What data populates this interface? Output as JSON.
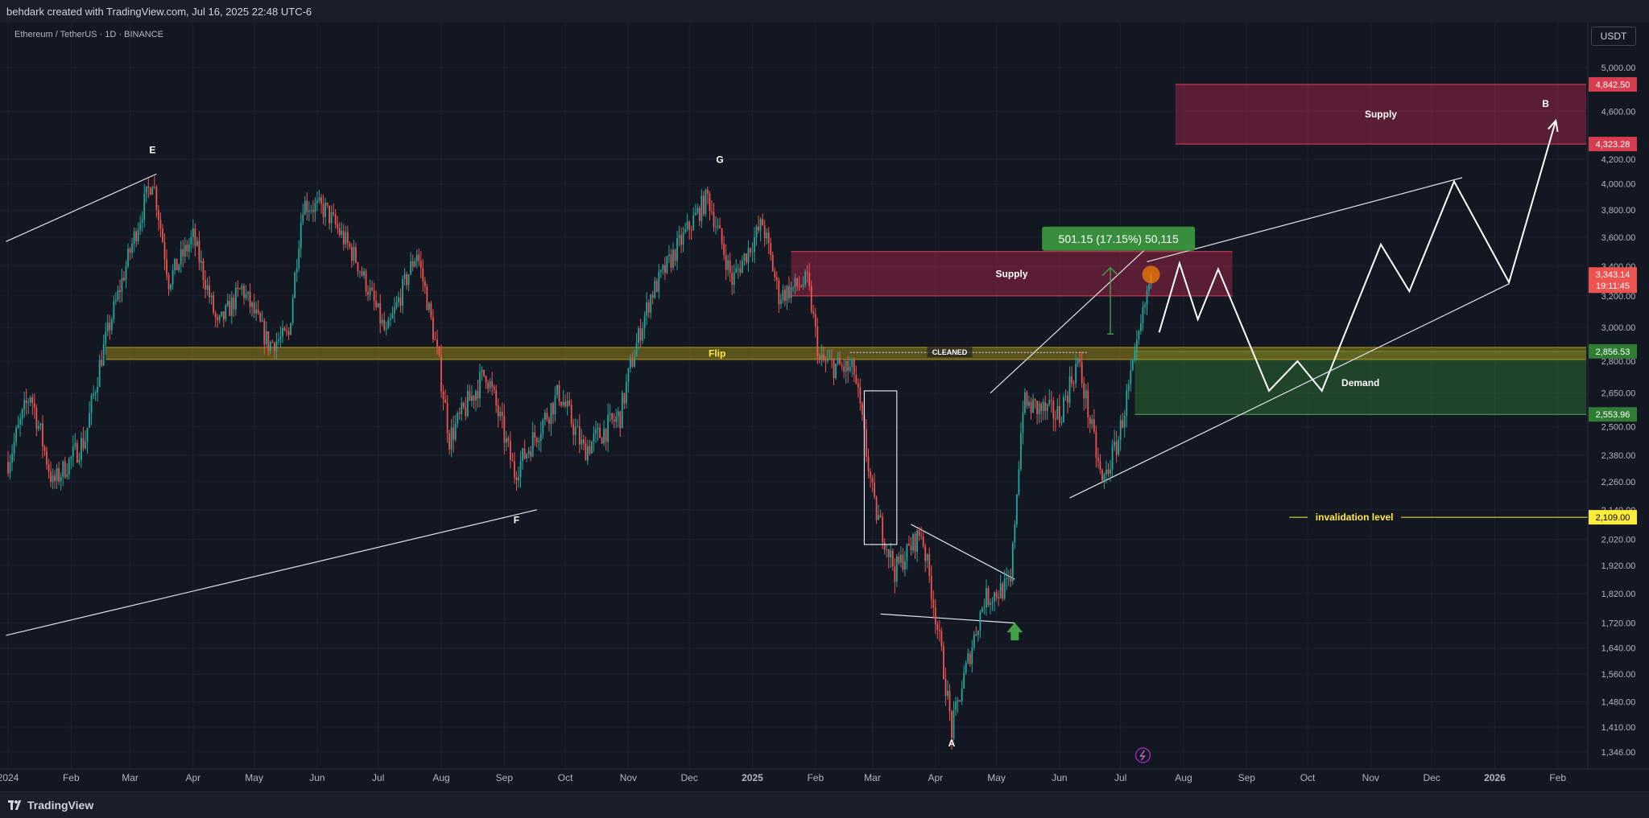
{
  "topbar": {
    "credit": "behdark created with TradingView.com, Jul 16, 2025 22:48 UTC-6"
  },
  "symbol_line": "Ethereum / TetherUS · 1D · BINANCE",
  "currency_button": "USDT",
  "footer": {
    "brand": "TradingView"
  },
  "colors": {
    "background": "#131722",
    "up_candle": "#26a69a",
    "down_candle": "#ef5350",
    "supply_zone": "#b2294b",
    "demand_zone": "#2e7d32",
    "flip_zone": "#8a7a1a",
    "invalidation": "#ffeb3b",
    "measure": "#43a047"
  },
  "chart_data": {
    "type": "candlestick",
    "instrument": "Ethereum / TetherUS",
    "timeframe": "1D",
    "exchange": "BINANCE",
    "y_axis_ticks": [
      "5,000.00",
      "4,600.00",
      "4,200.00",
      "4,000.00",
      "3,800.00",
      "3,600.00",
      "3,400.00",
      "3,200.00",
      "3,000.00",
      "2,800.00",
      "2,650.00",
      "2,500.00",
      "2,380.00",
      "2,260.00",
      "2,140.00",
      "2,020.00",
      "1,920.00",
      "1,820.00",
      "1,720.00",
      "1,640.00",
      "1,560.00",
      "1,480.00",
      "1,410.00",
      "1,346.00"
    ],
    "x_axis_ticks": [
      "2024",
      "Feb",
      "Mar",
      "Apr",
      "May",
      "Jun",
      "Jul",
      "Aug",
      "Sep",
      "Oct",
      "Nov",
      "Dec",
      "2025",
      "Feb",
      "Mar",
      "Apr",
      "May",
      "Jun",
      "Jul",
      "Aug",
      "Sep",
      "Oct",
      "Nov",
      "Dec",
      "2026",
      "Feb"
    ],
    "price_path": [
      {
        "date": "2024-01-01",
        "price": 2350
      },
      {
        "date": "2024-01-12",
        "price": 2650
      },
      {
        "date": "2024-01-23",
        "price": 2250
      },
      {
        "date": "2024-02-08",
        "price": 2450
      },
      {
        "date": "2024-02-26",
        "price": 3300
      },
      {
        "date": "2024-03-12",
        "price": 4050
      },
      {
        "date": "2024-03-20",
        "price": 3300
      },
      {
        "date": "2024-04-01",
        "price": 3600
      },
      {
        "date": "2024-04-13",
        "price": 3000
      },
      {
        "date": "2024-04-25",
        "price": 3250
      },
      {
        "date": "2024-05-08",
        "price": 2900
      },
      {
        "date": "2024-05-18",
        "price": 2950
      },
      {
        "date": "2024-05-25",
        "price": 3850
      },
      {
        "date": "2024-06-05",
        "price": 3800
      },
      {
        "date": "2024-06-20",
        "price": 3450
      },
      {
        "date": "2024-07-05",
        "price": 2950
      },
      {
        "date": "2024-07-20",
        "price": 3500
      },
      {
        "date": "2024-08-05",
        "price": 2450
      },
      {
        "date": "2024-08-23",
        "price": 2750
      },
      {
        "date": "2024-09-06",
        "price": 2300
      },
      {
        "date": "2024-09-28",
        "price": 2650
      },
      {
        "date": "2024-10-10",
        "price": 2400
      },
      {
        "date": "2024-10-28",
        "price": 2550
      },
      {
        "date": "2024-11-12",
        "price": 3200
      },
      {
        "date": "2024-11-28",
        "price": 3600
      },
      {
        "date": "2024-12-10",
        "price": 3900
      },
      {
        "date": "2024-12-22",
        "price": 3300
      },
      {
        "date": "2025-01-06",
        "price": 3700
      },
      {
        "date": "2025-01-14",
        "price": 3200
      },
      {
        "date": "2025-01-28",
        "price": 3300
      },
      {
        "date": "2025-02-03",
        "price": 2800
      },
      {
        "date": "2025-02-20",
        "price": 2750
      },
      {
        "date": "2025-03-02",
        "price": 2150
      },
      {
        "date": "2025-03-12",
        "price": 1900
      },
      {
        "date": "2025-03-25",
        "price": 2050
      },
      {
        "date": "2025-04-09",
        "price": 1400
      },
      {
        "date": "2025-04-25",
        "price": 1800
      },
      {
        "date": "2025-05-08",
        "price": 1850
      },
      {
        "date": "2025-05-14",
        "price": 2600
      },
      {
        "date": "2025-06-01",
        "price": 2550
      },
      {
        "date": "2025-06-10",
        "price": 2800
      },
      {
        "date": "2025-06-22",
        "price": 2250
      },
      {
        "date": "2025-06-30",
        "price": 2450
      },
      {
        "date": "2025-07-08",
        "price": 2800
      },
      {
        "date": "2025-07-16",
        "price": 3343.14
      }
    ],
    "price_range": [
      1346,
      5100
    ],
    "last_price": {
      "value": "3,343.14",
      "countdown": "19:11:45"
    },
    "zones": [
      {
        "name": "Supply",
        "type": "supply",
        "from": "2025-01-20",
        "to": "2025-08-25",
        "top": 3500,
        "bottom": 3200
      },
      {
        "name": "Supply",
        "type": "supply",
        "from": "2025-07-28",
        "to": "2026-02-15",
        "top": 4842.5,
        "bottom": 4323.28
      },
      {
        "name": "Demand",
        "type": "demand",
        "from": "2025-07-08",
        "to": "2026-02-15",
        "top": 2856.53,
        "bottom": 2553.96
      },
      {
        "name": "Flip",
        "type": "flip",
        "from": "2024-02-18",
        "to": "2026-02-15",
        "top": 2880,
        "bottom": 2810
      }
    ],
    "price_labels": [
      {
        "value": "4,842.50",
        "price": 4842.5,
        "kind": "supply"
      },
      {
        "value": "4,323.28",
        "price": 4323.28,
        "kind": "supply"
      },
      {
        "value": "2,856.53",
        "price": 2856.53,
        "kind": "demand"
      },
      {
        "value": "2,553.96",
        "price": 2553.96,
        "kind": "demand"
      },
      {
        "value": "2,109.00",
        "price": 2109,
        "kind": "invalidation"
      }
    ],
    "wave_labels": [
      {
        "label": "E",
        "date": "2024-03-12",
        "price": 4250
      },
      {
        "label": "F",
        "date": "2024-09-07",
        "price": 2085
      },
      {
        "label": "G",
        "date": "2024-12-16",
        "price": 4170
      },
      {
        "label": "A",
        "date": "2025-04-09",
        "price": 1360
      },
      {
        "label": "B",
        "date": "2026-01-26",
        "price": 4640
      }
    ],
    "annotations": {
      "cleaned": "CLEANED",
      "invalidation": "invalidation level",
      "measure": "501.15 (17.15%) 50,115"
    },
    "projection_path": [
      {
        "date": "2025-07-20",
        "price": 2970
      },
      {
        "date": "2025-07-30",
        "price": 3420
      },
      {
        "date": "2025-08-08",
        "price": 3050
      },
      {
        "date": "2025-08-18",
        "price": 3380
      },
      {
        "date": "2025-09-12",
        "price": 2660
      },
      {
        "date": "2025-09-26",
        "price": 2800
      },
      {
        "date": "2025-10-08",
        "price": 2660
      },
      {
        "date": "2025-11-06",
        "price": 3550
      },
      {
        "date": "2025-11-20",
        "price": 3230
      },
      {
        "date": "2025-12-12",
        "price": 4020
      },
      {
        "date": "2026-01-08",
        "price": 3290
      },
      {
        "date": "2026-01-31",
        "price": 4520
      }
    ],
    "trendlines": [
      {
        "from": {
          "date": "2023-12-31",
          "price": 3570
        },
        "to": {
          "date": "2024-03-14",
          "price": 4080
        }
      },
      {
        "from": {
          "date": "2023-12-31",
          "price": 1680
        },
        "to": {
          "date": "2024-09-17",
          "price": 2140
        }
      },
      {
        "from": {
          "date": "2025-04-28",
          "price": 2650
        },
        "to": {
          "date": "2025-07-24",
          "price": 3660
        }
      },
      {
        "from": {
          "date": "2025-07-14",
          "price": 3430
        },
        "to": {
          "date": "2025-12-16",
          "price": 4050
        }
      },
      {
        "from": {
          "date": "2025-06-06",
          "price": 2190
        },
        "to": {
          "date": "2026-01-08",
          "price": 3280
        }
      },
      {
        "from": {
          "date": "2025-03-20",
          "price": 2080
        },
        "to": {
          "date": "2025-05-10",
          "price": 1870
        }
      },
      {
        "from": {
          "date": "2025-03-05",
          "price": 1750
        },
        "to": {
          "date": "2025-05-10",
          "price": 1720
        }
      }
    ]
  }
}
